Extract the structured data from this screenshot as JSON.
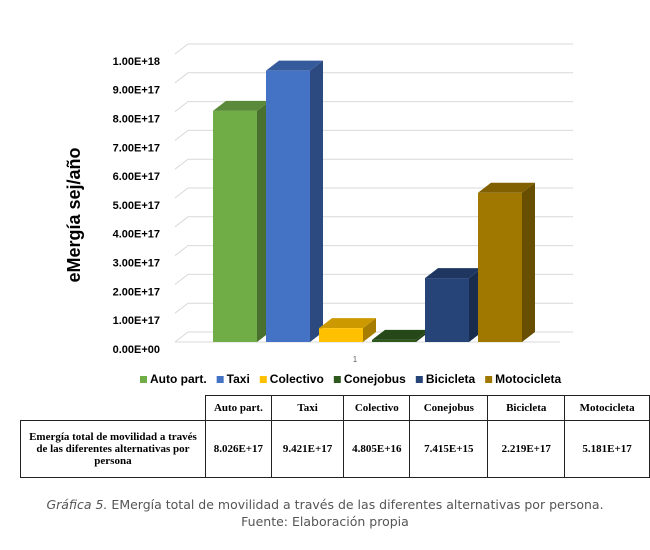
{
  "chart_data": {
    "type": "bar3d",
    "y_label": "eMergía sej/año",
    "categories": [
      "1"
    ],
    "ylim": [
      0,
      1e+18
    ],
    "yticks": [
      {
        "value": 0,
        "label": "0.00E+00"
      },
      {
        "value": 1e+17,
        "label": "1.00E+17"
      },
      {
        "value": 2e+17,
        "label": "2.00E+17"
      },
      {
        "value": 3e+17,
        "label": "3.00E+17"
      },
      {
        "value": 4e+17,
        "label": "4.00E+17"
      },
      {
        "value": 5e+17,
        "label": "5.00E+17"
      },
      {
        "value": 6e+17,
        "label": "6.00E+17"
      },
      {
        "value": 7e+17,
        "label": "7.00E+17"
      },
      {
        "value": 8e+17,
        "label": "8.00E+17"
      },
      {
        "value": 9e+17,
        "label": "9.00E+17"
      },
      {
        "value": 1e+18,
        "label": "1.00E+18"
      }
    ],
    "grid": true,
    "legend": "bottom",
    "series": [
      {
        "name": "Auto part.",
        "color": "#70ad47",
        "values": [
          8.026e+17
        ],
        "value_labels": [
          "8.026E+17"
        ]
      },
      {
        "name": "Taxi",
        "color": "#4472c4",
        "values": [
          9.421e+17
        ],
        "value_labels": [
          "9.421E+17"
        ]
      },
      {
        "name": "Colectivo",
        "color": "#ffc000",
        "values": [
          4.805e+16
        ],
        "value_labels": [
          "4.805E+16"
        ]
      },
      {
        "name": "Conejobus",
        "color": "#2f5a1e",
        "values": [
          7415000000000000.0
        ],
        "value_labels": [
          "7.415E+15"
        ]
      },
      {
        "name": "Bicicleta",
        "color": "#264478",
        "values": [
          2.219e+17
        ],
        "value_labels": [
          "2.219E+17"
        ]
      },
      {
        "name": "Motocicleta",
        "color": "#a07800",
        "values": [
          5.181e+17
        ],
        "value_labels": [
          "5.181E+17"
        ]
      }
    ],
    "table_row_label": "Emergía total de movilidad a través de las diferentes alternativas por persona"
  },
  "caption": {
    "label": "Gráfica 5.",
    "text": "EMergía total de movilidad a través de las diferentes alternativas por persona.",
    "source": "Fuente: Elaboración propia"
  }
}
